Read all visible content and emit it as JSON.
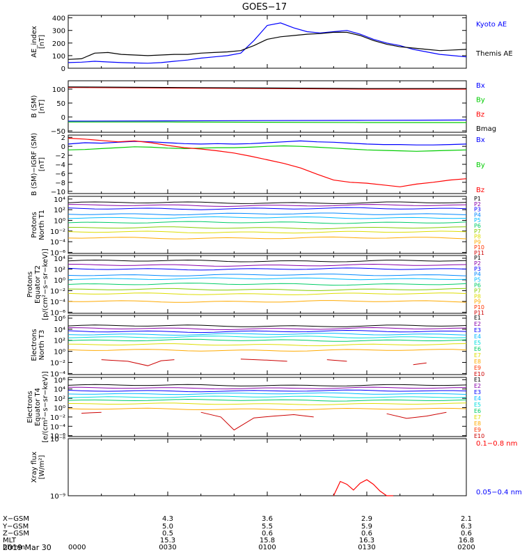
{
  "title": "GOES−17",
  "date_label": "2019 Mar 30",
  "footer": {
    "rows": [
      {
        "label": "X−GSM",
        "values": [
          "4.3",
          "3.6",
          "2.9",
          "2.1"
        ]
      },
      {
        "label": "Y−GSM",
        "values": [
          "5.0",
          "5.5",
          "5.9",
          "6.3"
        ]
      },
      {
        "label": "Z−GSM",
        "values": [
          "0.5",
          "0.6",
          "0.6",
          "0.6"
        ]
      },
      {
        "label": "MLT",
        "values": [
          "15.3",
          "15.8",
          "16.3",
          "16.8"
        ]
      },
      {
        "label": "hhmm",
        "values": [
          "0000",
          "0030",
          "0100",
          "0130",
          "0200"
        ]
      }
    ]
  },
  "colors": {
    "black": "#000000",
    "blue": "#0000ff",
    "green": "#00cc00",
    "red": "#ff0000",
    "darkred": "#cc0000",
    "cyan": "#00bbff",
    "violet": "#8800aa"
  },
  "chart_data": [
    {
      "type": "line",
      "ylabel": "AE_index\n[nT]",
      "ylim": [
        0,
        420
      ],
      "yticks": [
        "0",
        "100",
        "200",
        "300",
        "400"
      ],
      "yticks_val": [
        0,
        100,
        200,
        300,
        400
      ],
      "x": [
        0,
        4,
        8,
        12,
        16,
        20,
        24,
        28,
        32,
        36,
        40,
        44,
        48,
        52,
        56,
        60,
        64,
        68,
        72,
        76,
        80,
        84,
        88,
        92,
        96,
        100,
        104,
        108,
        112,
        116,
        120
      ],
      "series": [
        {
          "name": "Kyoto AE",
          "color": "#0000ff",
          "values": [
            45,
            48,
            55,
            50,
            45,
            42,
            40,
            45,
            55,
            65,
            80,
            90,
            100,
            120,
            220,
            340,
            360,
            320,
            290,
            280,
            290,
            300,
            270,
            230,
            200,
            180,
            150,
            130,
            110,
            100,
            90
          ]
        },
        {
          "name": "Themis AE",
          "color": "#000000",
          "values": [
            70,
            75,
            120,
            125,
            110,
            105,
            100,
            105,
            110,
            110,
            120,
            125,
            130,
            140,
            180,
            230,
            250,
            260,
            270,
            275,
            285,
            285,
            260,
            220,
            190,
            170,
            160,
            150,
            140,
            145,
            150
          ]
        }
      ]
    },
    {
      "type": "line",
      "ylabel": "B (SM)\n[nT]",
      "ylim": [
        -55,
        130
      ],
      "yticks": [
        "−50",
        "0",
        "50",
        "100"
      ],
      "yticks_val": [
        -50,
        0,
        50,
        100
      ],
      "x": [
        0,
        30,
        60,
        90,
        120
      ],
      "series": [
        {
          "name": "Bx",
          "color": "#0000ff",
          "values": [
            -15,
            -14,
            -13,
            -12,
            -11
          ]
        },
        {
          "name": "By",
          "color": "#00cc00",
          "values": [
            -18,
            -18,
            -19,
            -20,
            -20
          ]
        },
        {
          "name": "Bz",
          "color": "#ff0000",
          "values": [
            106,
            104,
            102,
            100,
            100
          ]
        },
        {
          "name": "Bmag",
          "color": "#000000",
          "values": [
            108,
            106,
            104,
            102,
            102
          ]
        }
      ]
    },
    {
      "type": "line",
      "ylabel": "B (SM)−IGRF (SM)\n[nT]",
      "ylim": [
        -10.5,
        2.5
      ],
      "yticks": [
        "−10",
        "−8",
        "−6",
        "−4",
        "−2",
        "0",
        "2"
      ],
      "yticks_val": [
        -10,
        -8,
        -6,
        -4,
        -2,
        0,
        2
      ],
      "x": [
        0,
        5,
        10,
        15,
        20,
        25,
        30,
        35,
        40,
        45,
        50,
        55,
        60,
        65,
        70,
        75,
        80,
        85,
        90,
        95,
        100,
        105,
        110,
        115,
        120
      ],
      "series": [
        {
          "name": "Bx",
          "color": "#0000ff",
          "values": [
            0.5,
            0.8,
            0.7,
            0.9,
            1.1,
            1.0,
            0.8,
            0.6,
            0.5,
            0.6,
            0.5,
            0.6,
            0.8,
            1.0,
            1.2,
            1.0,
            0.9,
            0.7,
            0.5,
            0.4,
            0.4,
            0.3,
            0.3,
            0.4,
            0.5
          ]
        },
        {
          "name": "By",
          "color": "#00cc00",
          "values": [
            -0.8,
            -0.7,
            -0.5,
            -0.3,
            -0.1,
            -0.2,
            -0.4,
            -0.5,
            -0.4,
            -0.3,
            -0.3,
            -0.2,
            0.0,
            0.1,
            0.0,
            -0.2,
            -0.4,
            -0.6,
            -0.8,
            -0.9,
            -1.0,
            -1.1,
            -1.0,
            -0.9,
            -0.8
          ]
        },
        {
          "name": "Bz",
          "color": "#ff0000",
          "values": [
            1.8,
            1.6,
            1.3,
            1.0,
            1.2,
            0.8,
            0.2,
            -0.3,
            -0.6,
            -1.0,
            -1.5,
            -2.2,
            -3.0,
            -3.8,
            -4.8,
            -6.2,
            -7.5,
            -8.0,
            -8.2,
            -8.6,
            -9.0,
            -8.4,
            -8.0,
            -7.5,
            -7.2
          ]
        }
      ]
    },
    {
      "type": "line",
      "ylabel": "Protons\nNorth T1",
      "log": true,
      "ylim": [
        -6.2,
        4.5
      ],
      "yticks": [
        "10⁻⁶",
        "10⁻⁴",
        "10⁻²",
        "10⁰",
        "10²",
        "10⁴"
      ],
      "yticks_val": [
        -6,
        -4,
        -2,
        0,
        2,
        4
      ],
      "channels": [
        "P1",
        "P2",
        "P3",
        "P4",
        "P5",
        "P6",
        "P7",
        "P8",
        "P9",
        "P10",
        "P11"
      ],
      "channel_colors": [
        "#000000",
        "#8800aa",
        "#0000ff",
        "#0088ff",
        "#00bbff",
        "#00cc66",
        "#88cc00",
        "#dddd00",
        "#ffaa00",
        "#ff3300",
        "#cc0000"
      ],
      "levels": [
        3.3,
        2.8,
        2.2,
        1.2,
        0.5,
        -0.4,
        -1.4,
        -2.2,
        -3.3
      ]
    },
    {
      "type": "line",
      "ylabel": "Protons\nEquator T2\n[p/(cm²−s−sr−keV)]",
      "log": true,
      "ylim": [
        -6.2,
        4.5
      ],
      "yticks": [
        "10⁻⁶",
        "10⁻⁴",
        "10⁻²",
        "10⁰",
        "10²",
        "10⁴"
      ],
      "yticks_val": [
        -6,
        -4,
        -2,
        0,
        2,
        4
      ],
      "channels": [
        "P1",
        "P2",
        "P3",
        "P4",
        "P5",
        "P6",
        "P7",
        "P8",
        "P9",
        "P10",
        "P11"
      ],
      "channel_colors": [
        "#000000",
        "#8800aa",
        "#0000ff",
        "#0088ff",
        "#00bbff",
        "#00cc66",
        "#88cc00",
        "#dddd00",
        "#ffaa00",
        "#ff3300",
        "#cc0000"
      ],
      "levels": [
        3.5,
        2.7,
        2.0,
        0.9,
        0.2,
        -0.8,
        -1.8,
        -2.6,
        -4.0
      ]
    },
    {
      "type": "line",
      "ylabel": "Electrons\nNorth T3",
      "log": true,
      "ylim": [
        -4.2,
        6.5
      ],
      "yticks": [
        "10⁻⁴",
        "10⁻²",
        "10⁰",
        "10²",
        "10⁴",
        "10⁶"
      ],
      "yticks_val": [
        -4,
        -2,
        0,
        2,
        4,
        6
      ],
      "channels": [
        "E1",
        "E2",
        "E3",
        "E4",
        "E5",
        "E6",
        "E7",
        "E8",
        "E9",
        "E10"
      ],
      "channel_colors": [
        "#000000",
        "#8800aa",
        "#0000ff",
        "#00bbff",
        "#00dddd",
        "#00cc66",
        "#dddd00",
        "#ffaa00",
        "#ff3300",
        "#cc0000"
      ],
      "levels": [
        4.6,
        4.1,
        3.6,
        3.1,
        2.6,
        2.0,
        1.2,
        0.2
      ],
      "sparse": {
        "color": "#cc0000",
        "segments": [
          [
            [
              10,
              -1.5
            ],
            [
              18,
              -1.8
            ],
            [
              24,
              -2.6
            ],
            [
              28,
              -1.7
            ],
            [
              32,
              -1.5
            ]
          ],
          [
            [
              52,
              -1.4
            ],
            [
              60,
              -1.6
            ],
            [
              66,
              -1.8
            ]
          ],
          [
            [
              78,
              -1.5
            ],
            [
              84,
              -1.8
            ]
          ],
          [
            [
              104,
              -2.4
            ],
            [
              108,
              -2.1
            ]
          ]
        ]
      }
    },
    {
      "type": "line",
      "ylabel": "Electrons\nEquator T4\n[e/(cm²−s−sr−keV)]",
      "log": true,
      "ylim": [
        -6.2,
        6.5
      ],
      "yticks": [
        "10⁻⁶",
        "10⁻⁴",
        "10⁻²",
        "10⁰",
        "10²",
        "10⁴",
        "10⁶"
      ],
      "yticks_val": [
        -6,
        -4,
        -2,
        0,
        2,
        4,
        6
      ],
      "channels": [
        "E1",
        "E2",
        "E3",
        "E4",
        "E5",
        "E6",
        "E7",
        "E8",
        "E9",
        "E10"
      ],
      "channel_colors": [
        "#000000",
        "#8800aa",
        "#0000ff",
        "#00bbff",
        "#00dddd",
        "#00cc66",
        "#dddd00",
        "#ffaa00",
        "#ff3300",
        "#cc0000"
      ],
      "levels": [
        4.8,
        4.2,
        3.6,
        3.0,
        2.3,
        1.6,
        0.8,
        -0.3
      ],
      "sparse": {
        "color": "#cc0000",
        "segments": [
          [
            [
              4,
              -1.2
            ],
            [
              10,
              -1.0
            ]
          ],
          [
            [
              40,
              -1.0
            ],
            [
              46,
              -2.0
            ],
            [
              50,
              -4.8
            ],
            [
              56,
              -2.2
            ],
            [
              62,
              -1.8
            ],
            [
              68,
              -1.5
            ],
            [
              74,
              -2.0
            ]
          ],
          [
            [
              96,
              -1.3
            ],
            [
              102,
              -2.3
            ],
            [
              108,
              -1.8
            ],
            [
              114,
              -1.0
            ]
          ]
        ]
      }
    },
    {
      "type": "line",
      "ylabel": "Xray flux\n[W/m²]",
      "log": true,
      "ylim": [
        -9,
        -8
      ],
      "yticks": [
        "10⁻⁹",
        "10⁻⁸"
      ],
      "yticks_val": [
        -9,
        -8
      ],
      "series": [
        {
          "name": "0.1−0.8 nm",
          "color": "#ff0000",
          "x": [
            80,
            82,
            84,
            86,
            88,
            90,
            92,
            94,
            96,
            98
          ],
          "values": [
            -9.0,
            -8.75,
            -8.8,
            -8.9,
            -8.78,
            -8.72,
            -8.8,
            -8.92,
            -9.0,
            -9.0
          ]
        },
        {
          "name": "0.05−0.4 nm",
          "color": "#0000ff",
          "x": [],
          "values": []
        }
      ]
    }
  ]
}
